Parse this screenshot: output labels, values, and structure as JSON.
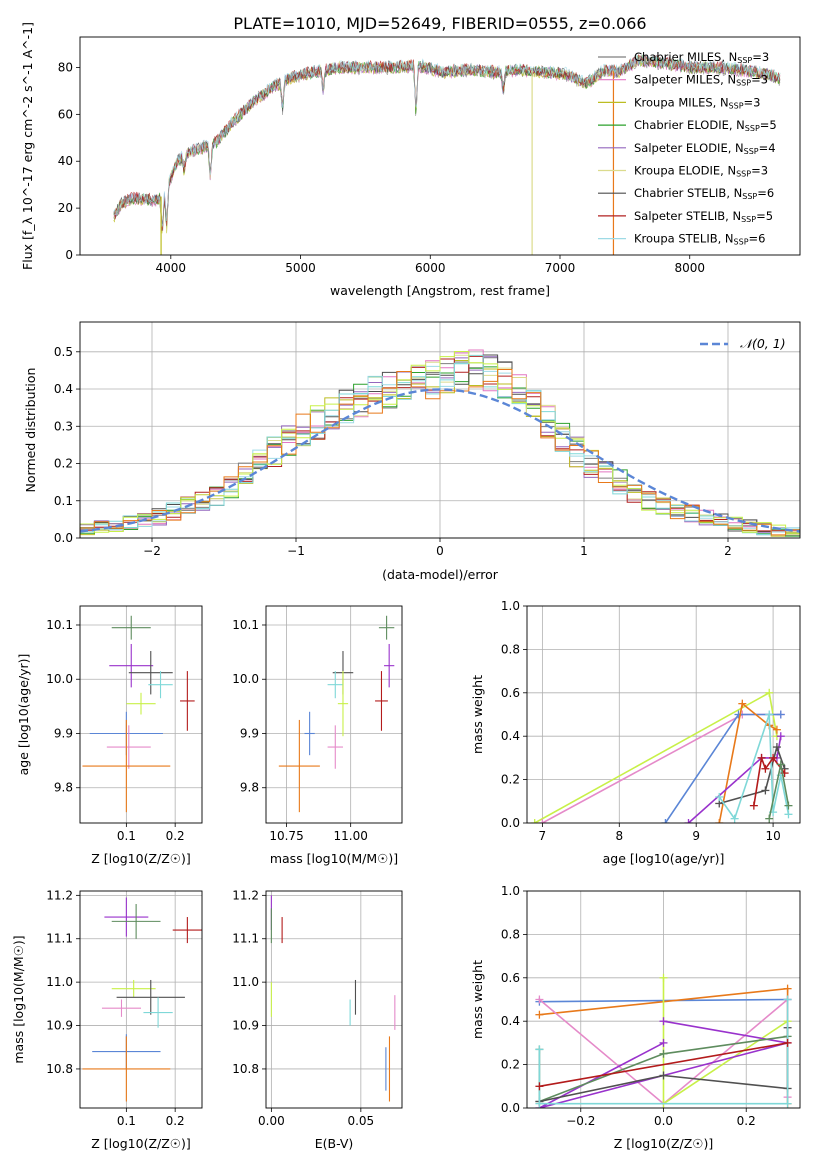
{
  "figure_title": "PLATE=1010, MJD=52649, FIBERID=0555, z=0.066",
  "colors": {
    "chabrier_miles": "#7f7f7f",
    "salpeter_miles": "#e377c2",
    "kroupa_miles": "#bcbd22",
    "chabrier_elodie": "#2ca02c",
    "salpeter_elodie": "#9467bd",
    "kroupa_elodie": "#dbdb8d",
    "chabrier_stelib": "#4d4d4d",
    "salpeter_stelib": "#b22222",
    "kroupa_stelib": "#9edae5",
    "fit_blue": "#5b86d6",
    "fit_orange": "#e8791a",
    "fit_cyan": "#7fd8d8",
    "fit_lime": "#c8f048",
    "fit_purple": "#9932cc",
    "fit_pink": "#e58ac9",
    "fit_green": "#5e8c5e",
    "fit_dark": "#505050",
    "fit_red": "#b31b1b",
    "normal_curve": "#5b86d6"
  },
  "chart_data": [
    {
      "id": "spectrum",
      "type": "line",
      "title": "PLATE=1010, MJD=52649, FIBERID=0555, z=0.066",
      "xlabel": "wavelength [Angstrom, rest frame]",
      "ylabel": "Flux [f_λ 10^-17 erg cm^-2 s^-1 A^-1]",
      "xlim": [
        3300,
        8850
      ],
      "ylim": [
        0,
        93
      ],
      "xticks": [
        "4000",
        "5000",
        "6000",
        "7000",
        "8000"
      ],
      "yticks": [
        "0",
        "20",
        "40",
        "60",
        "80"
      ],
      "grid": false,
      "legend_position": "top-right",
      "series": [
        {
          "name": "Chabrier MILES, N_SSP=3",
          "color_key": "chabrier_miles"
        },
        {
          "name": "Salpeter MILES, N_SSP=3",
          "color_key": "salpeter_miles"
        },
        {
          "name": "Kroupa MILES, N_SSP=3",
          "color_key": "kroupa_miles"
        },
        {
          "name": "Chabrier ELODIE, N_SSP=5",
          "color_key": "chabrier_elodie"
        },
        {
          "name": "Salpeter ELODIE, N_SSP=4",
          "color_key": "salpeter_elodie"
        },
        {
          "name": "Kroupa ELODIE, N_SSP=3",
          "color_key": "kroupa_elodie"
        },
        {
          "name": "Chabrier STELIB, N_SSP=6",
          "color_key": "chabrier_stelib"
        },
        {
          "name": "Salpeter STELIB, N_SSP=5",
          "color_key": "salpeter_stelib"
        },
        {
          "name": "Kroupa STELIB, N_SSP=6",
          "color_key": "kroupa_stelib"
        }
      ],
      "continuum": {
        "x": [
          3560,
          3620,
          3700,
          3800,
          3880,
          3950,
          4050,
          4150,
          4250,
          4350,
          4500,
          4650,
          4800,
          4950,
          5100,
          5300,
          5500,
          5700,
          5900,
          6100,
          6300,
          6500,
          6700,
          6900,
          7050,
          7200,
          7350,
          7450,
          7600,
          7800,
          8000,
          8200,
          8400,
          8600,
          8700
        ],
        "y": [
          16,
          22,
          24,
          24,
          23,
          26,
          40,
          44,
          46,
          48,
          58,
          66,
          72,
          76,
          78,
          80,
          80,
          80,
          81,
          78,
          79,
          78,
          79,
          78,
          77,
          73,
          79,
          78,
          83,
          82,
          80,
          80,
          79,
          77,
          75
        ]
      },
      "absorption_dips": [
        {
          "x": 3934,
          "y": 10
        },
        {
          "x": 3968,
          "y": 12
        },
        {
          "x": 4102,
          "y": 36
        },
        {
          "x": 4305,
          "y": 33
        },
        {
          "x": 4861,
          "y": 62
        },
        {
          "x": 5175,
          "y": 70
        },
        {
          "x": 5890,
          "y": 60
        },
        {
          "x": 6563,
          "y": 70
        }
      ],
      "outliers": [
        {
          "x": 3925,
          "y": 0,
          "color_key": "kroupa_miles"
        },
        {
          "x": 6785,
          "y": 0,
          "color_key": "kroupa_elodie"
        },
        {
          "x": 7412,
          "y": 0,
          "color_key": "fit_orange"
        }
      ]
    },
    {
      "id": "residuals",
      "type": "histogram",
      "xlabel": "(data-model)/error",
      "ylabel": "Normed distribution",
      "xlim": [
        -2.5,
        2.5
      ],
      "ylim": [
        0,
        0.58
      ],
      "xticks": [
        "−2",
        "−1",
        "0",
        "1",
        "2"
      ],
      "yticks": [
        "0.0",
        "0.1",
        "0.2",
        "0.3",
        "0.4",
        "0.5"
      ],
      "grid": true,
      "legend_position": "top-right",
      "legend_label": "𝒩(0, 1)",
      "bin_width": 0.1,
      "base_profile": {
        "x": [
          -2.5,
          -2.0,
          -1.5,
          -1.0,
          -0.5,
          0.0,
          0.25,
          0.5,
          1.0,
          1.5,
          2.0,
          2.5
        ],
        "y": [
          0.02,
          0.05,
          0.12,
          0.28,
          0.38,
          0.43,
          0.46,
          0.42,
          0.21,
          0.09,
          0.04,
          0.01
        ]
      }
    },
    {
      "id": "age_vs_Z",
      "type": "errorbar",
      "xlabel": "Z [log10(Z/Z☉)]",
      "ylabel": "age  [log10(age/yr)]",
      "xlim": [
        0.005,
        0.255
      ],
      "ylim": [
        9.735,
        10.135
      ],
      "xticks": [
        "0.1",
        "0.2"
      ],
      "yticks": [
        "9.8",
        "9.9",
        "10.0",
        "10.1"
      ],
      "grid": true,
      "points": [
        {
          "x": 0.11,
          "xerr": 0.04,
          "y": 10.095,
          "yerr": 0.022,
          "color_key": "fit_green"
        },
        {
          "x": 0.11,
          "xerr": 0.045,
          "y": 10.025,
          "yerr": 0.04,
          "color_key": "fit_purple"
        },
        {
          "x": 0.15,
          "xerr": 0.045,
          "y": 10.012,
          "yerr": 0.04,
          "color_key": "fit_dark"
        },
        {
          "x": 0.17,
          "xerr": 0.025,
          "y": 9.99,
          "yerr": 0.025,
          "color_key": "fit_cyan"
        },
        {
          "x": 0.225,
          "xerr": 0.015,
          "y": 9.96,
          "yerr": 0.055,
          "color_key": "fit_red"
        },
        {
          "x": 0.13,
          "xerr": 0.03,
          "y": 9.955,
          "yerr": 0.02,
          "color_key": "fit_lime"
        },
        {
          "x": 0.1,
          "xerr": 0.075,
          "y": 9.9,
          "yerr": 0.04,
          "color_key": "fit_blue"
        },
        {
          "x": 0.105,
          "xerr": 0.045,
          "y": 9.875,
          "yerr": 0.04,
          "color_key": "fit_pink"
        },
        {
          "x": 0.1,
          "xerr": 0.09,
          "y": 9.84,
          "yerr": 0.085,
          "color_key": "fit_orange"
        }
      ]
    },
    {
      "id": "age_vs_mass",
      "type": "errorbar",
      "xlabel": "mass [log10(M/M☉)]",
      "ylabel": "",
      "xlim": [
        10.67,
        11.2
      ],
      "ylim": [
        9.735,
        10.135
      ],
      "xticks": [
        "10.75",
        "11.00"
      ],
      "yticks": [
        "9.8",
        "9.9",
        "10.0",
        "10.1"
      ],
      "grid": true,
      "points": [
        {
          "x": 11.14,
          "xerr": 0.03,
          "y": 10.095,
          "yerr": 0.022,
          "color_key": "fit_green"
        },
        {
          "x": 11.15,
          "xerr": 0.02,
          "y": 10.025,
          "yerr": 0.04,
          "color_key": "fit_purple"
        },
        {
          "x": 10.97,
          "xerr": 0.04,
          "y": 10.012,
          "yerr": 0.04,
          "color_key": "fit_dark"
        },
        {
          "x": 10.94,
          "xerr": 0.03,
          "y": 9.99,
          "yerr": 0.025,
          "color_key": "fit_cyan"
        },
        {
          "x": 11.12,
          "xerr": 0.025,
          "y": 9.96,
          "yerr": 0.055,
          "color_key": "fit_red"
        },
        {
          "x": 10.97,
          "xerr": 0.02,
          "y": 9.955,
          "yerr": 0.06,
          "color_key": "fit_lime"
        },
        {
          "x": 10.84,
          "xerr": 0.02,
          "y": 9.9,
          "yerr": 0.04,
          "color_key": "fit_blue"
        },
        {
          "x": 10.94,
          "xerr": 0.03,
          "y": 9.875,
          "yerr": 0.04,
          "color_key": "fit_pink"
        },
        {
          "x": 10.8,
          "xerr": 0.08,
          "y": 9.84,
          "yerr": 0.085,
          "color_key": "fit_orange"
        }
      ]
    },
    {
      "id": "weight_vs_age",
      "type": "line",
      "xlabel": "age  [log10(age/yr)]",
      "ylabel": "mass weight",
      "xlim": [
        6.8,
        10.35
      ],
      "ylim": [
        0,
        1
      ],
      "xticks": [
        "7",
        "8",
        "9",
        "10"
      ],
      "yticks": [
        "0.0",
        "0.2",
        "0.4",
        "0.6",
        "0.8",
        "1.0"
      ],
      "grid": true,
      "series": [
        {
          "color_key": "fit_lime",
          "x": [
            6.9,
            9.95,
            10.05
          ],
          "y": [
            0.0,
            0.6,
            0.4
          ]
        },
        {
          "color_key": "fit_pink",
          "x": [
            7.0,
            9.6,
            10.1
          ],
          "y": [
            0.0,
            0.5,
            0.5
          ]
        },
        {
          "color_key": "fit_blue",
          "x": [
            8.6,
            9.55,
            10.1
          ],
          "y": [
            0.0,
            0.5,
            0.5
          ]
        },
        {
          "color_key": "fit_orange",
          "x": [
            9.3,
            9.6,
            9.95,
            10.05
          ],
          "y": [
            0.0,
            0.55,
            0.45,
            0.43
          ]
        },
        {
          "color_key": "fit_purple",
          "x": [
            8.9,
            9.85,
            10.05,
            10.1
          ],
          "y": [
            0.0,
            0.3,
            0.3,
            0.4
          ]
        },
        {
          "color_key": "fit_dark",
          "x": [
            9.3,
            9.9,
            10.05,
            10.15
          ],
          "y": [
            0.09,
            0.15,
            0.35,
            0.25
          ]
        },
        {
          "color_key": "fit_cyan",
          "x": [
            9.3,
            9.5,
            9.95,
            10.0,
            10.1,
            10.2
          ],
          "y": [
            0.12,
            0.02,
            0.5,
            0.05,
            0.22,
            0.04
          ]
        },
        {
          "color_key": "fit_red",
          "x": [
            9.75,
            9.85,
            9.9,
            10.0,
            10.15
          ],
          "y": [
            0.08,
            0.3,
            0.25,
            0.3,
            0.23
          ]
        },
        {
          "color_key": "fit_green",
          "x": [
            9.95,
            10.1,
            10.2
          ],
          "y": [
            0.02,
            0.27,
            0.08
          ]
        }
      ]
    },
    {
      "id": "mass_vs_Z",
      "type": "errorbar",
      "xlabel": "Z [log10(Z/Z☉)]",
      "ylabel": "mass [log10(M/M☉)]",
      "xlim": [
        0.005,
        0.255
      ],
      "ylim": [
        10.71,
        11.21
      ],
      "xticks": [
        "0.1",
        "0.2"
      ],
      "yticks": [
        "10.8",
        "10.9",
        "11.0",
        "11.1",
        "11.2"
      ],
      "grid": true,
      "points": [
        {
          "x": 0.1,
          "xerr": 0.045,
          "y": 11.15,
          "yerr": 0.045,
          "color_key": "fit_purple"
        },
        {
          "x": 0.12,
          "xerr": 0.05,
          "y": 11.14,
          "yerr": 0.04,
          "color_key": "fit_green"
        },
        {
          "x": 0.225,
          "xerr": 0.03,
          "y": 11.12,
          "yerr": 0.03,
          "color_key": "fit_red"
        },
        {
          "x": 0.115,
          "xerr": 0.045,
          "y": 10.985,
          "yerr": 0.02,
          "color_key": "fit_lime"
        },
        {
          "x": 0.15,
          "xerr": 0.07,
          "y": 10.965,
          "yerr": 0.04,
          "color_key": "fit_dark"
        },
        {
          "x": 0.09,
          "xerr": 0.04,
          "y": 10.94,
          "yerr": 0.02,
          "color_key": "fit_pink"
        },
        {
          "x": 0.165,
          "xerr": 0.03,
          "y": 10.93,
          "yerr": 0.035,
          "color_key": "fit_cyan"
        },
        {
          "x": 0.1,
          "xerr": 0.07,
          "y": 10.84,
          "yerr": 0.04,
          "color_key": "fit_blue"
        },
        {
          "x": 0.1,
          "xerr": 0.09,
          "y": 10.8,
          "yerr": 0.075,
          "color_key": "fit_orange"
        }
      ]
    },
    {
      "id": "mass_vs_ebv",
      "type": "errorbar",
      "xlabel": "E(B-V)",
      "ylabel": "",
      "xlim": [
        -0.003,
        0.073
      ],
      "ylim": [
        10.71,
        11.21
      ],
      "xticks": [
        "0.00",
        "0.05"
      ],
      "yticks": [
        "10.8",
        "10.9",
        "11.0",
        "11.1",
        "11.2"
      ],
      "grid": true,
      "points": [
        {
          "x": 0.0,
          "xerr": 0.0,
          "y": 11.16,
          "yerr": 0.04,
          "color_key": "fit_purple"
        },
        {
          "x": 0.006,
          "xerr": 0.0,
          "y": 11.12,
          "yerr": 0.03,
          "color_key": "fit_red"
        },
        {
          "x": 0.0,
          "xerr": 0.0,
          "y": 11.13,
          "yerr": 0.04,
          "color_key": "fit_green"
        },
        {
          "x": 0.0,
          "xerr": 0.0,
          "y": 10.96,
          "yerr": 0.04,
          "color_key": "fit_lime"
        },
        {
          "x": 0.047,
          "xerr": 0.0,
          "y": 10.965,
          "yerr": 0.04,
          "color_key": "fit_dark"
        },
        {
          "x": 0.044,
          "xerr": 0.0,
          "y": 10.93,
          "yerr": 0.03,
          "color_key": "fit_cyan"
        },
        {
          "x": 0.069,
          "xerr": 0.0,
          "y": 10.93,
          "yerr": 0.04,
          "color_key": "fit_pink"
        },
        {
          "x": 0.064,
          "xerr": 0.0,
          "y": 10.8,
          "yerr": 0.05,
          "color_key": "fit_blue"
        },
        {
          "x": 0.066,
          "xerr": 0.0,
          "y": 10.8,
          "yerr": 0.075,
          "color_key": "fit_orange"
        }
      ]
    },
    {
      "id": "weight_vs_Z",
      "type": "line",
      "xlabel": "Z [log10(Z/Z☉)]",
      "ylabel": "mass weight",
      "xlim": [
        -0.33,
        0.33
      ],
      "ylim": [
        0,
        1
      ],
      "xticks": [
        "−0.2",
        "0.0",
        "0.2"
      ],
      "yticks": [
        "0.0",
        "0.2",
        "0.4",
        "0.6",
        "0.8",
        "1.0"
      ],
      "grid": true,
      "series": [
        {
          "color_key": "fit_blue",
          "x": [
            -0.3,
            0.3
          ],
          "y": [
            0.49,
            0.5
          ]
        },
        {
          "color_key": "fit_orange",
          "x": [
            -0.3,
            0.3,
            0.3
          ],
          "y": [
            0.43,
            0.55,
            0.02
          ]
        },
        {
          "color_key": "fit_pink",
          "x": [
            -0.3,
            0.0,
            0.3,
            0.3
          ],
          "y": [
            0.5,
            0.02,
            0.5,
            0.05
          ]
        },
        {
          "color_key": "fit_lime",
          "x": [
            0.0,
            0.0,
            0.3
          ],
          "y": [
            0.6,
            0.02,
            0.4
          ]
        },
        {
          "color_key": "fit_purple",
          "x": [
            0.0,
            0.3,
            -0.3,
            0.0
          ],
          "y": [
            0.4,
            0.3,
            0.0,
            0.3
          ]
        },
        {
          "color_key": "fit_green",
          "x": [
            -0.3,
            -0.3,
            0.0,
            0.3
          ],
          "y": [
            0.27,
            0.03,
            0.25,
            0.33
          ]
        },
        {
          "color_key": "fit_dark",
          "x": [
            -0.3,
            0.0,
            0.3,
            0.3
          ],
          "y": [
            0.03,
            0.15,
            0.09,
            0.37
          ]
        },
        {
          "color_key": "fit_cyan",
          "x": [
            -0.3,
            -0.3,
            0.3,
            0.3
          ],
          "y": [
            0.27,
            0.02,
            0.02,
            0.5
          ]
        },
        {
          "color_key": "fit_red",
          "x": [
            -0.3,
            0.3
          ],
          "y": [
            0.1,
            0.3
          ]
        }
      ]
    }
  ]
}
